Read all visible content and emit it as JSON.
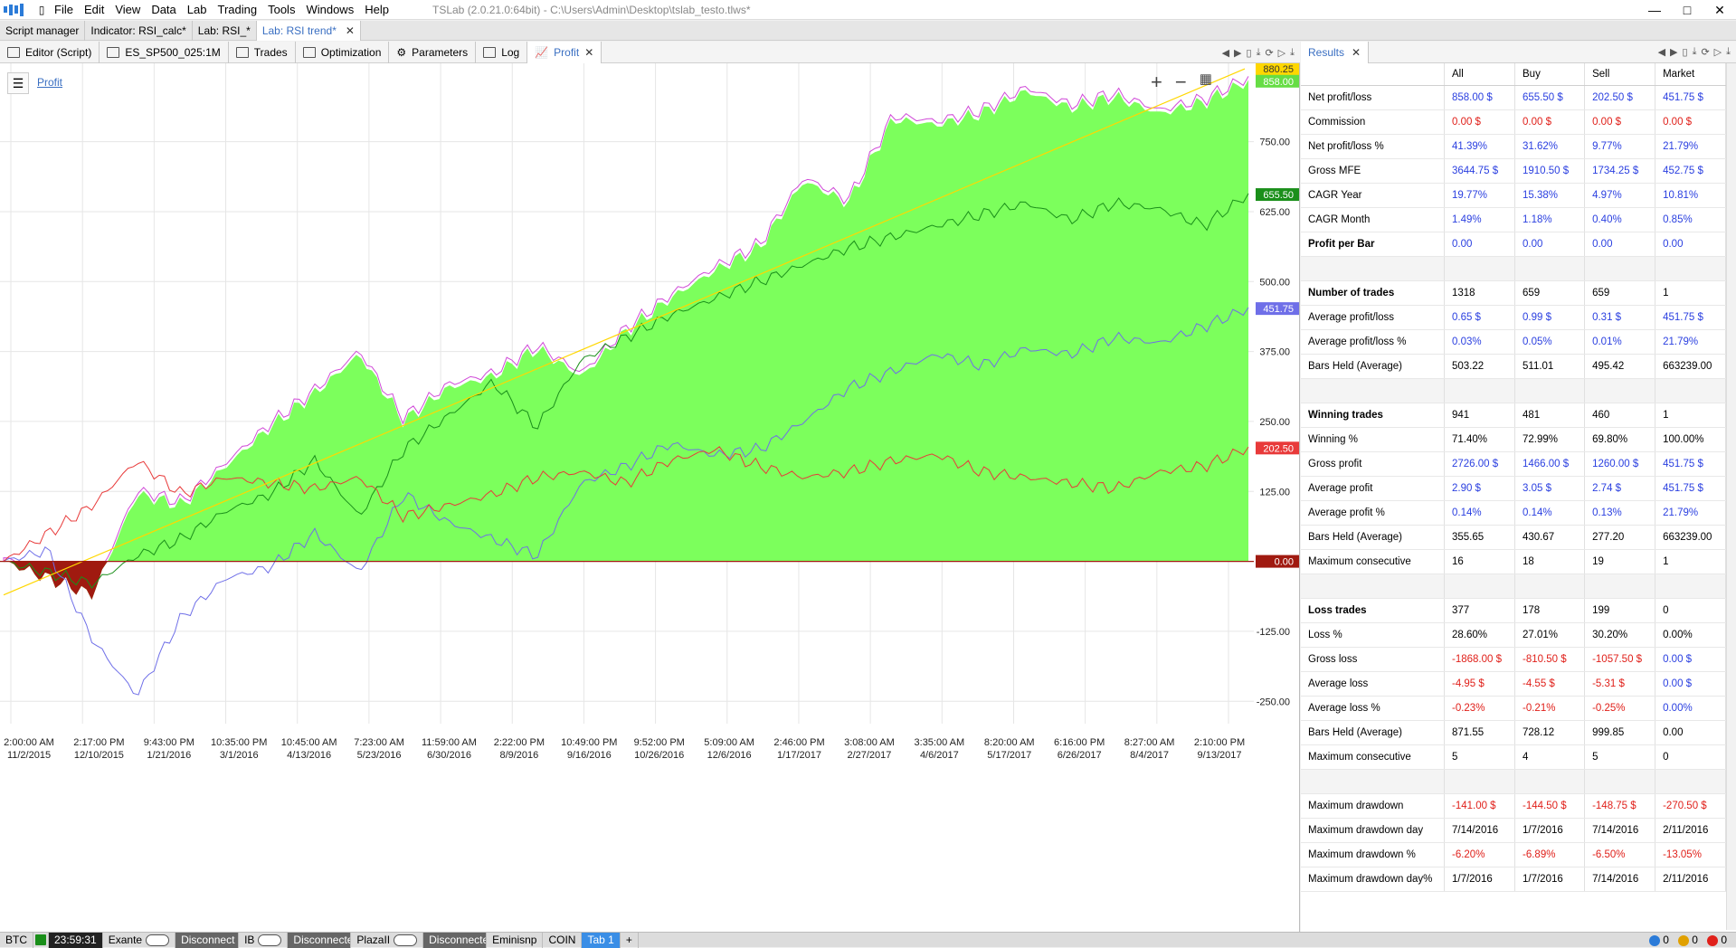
{
  "window": {
    "title": "TSLab (2.0.21.0:64bit) - C:\\Users\\Admin\\Desktop\\tslab_testo.tlws*",
    "menu": [
      "File",
      "Edit",
      "View",
      "Data",
      "Lab",
      "Trading",
      "Tools",
      "Windows",
      "Help"
    ]
  },
  "doc_tabs": [
    {
      "label": "Script manager"
    },
    {
      "label": "Indicator: RSI_calc*"
    },
    {
      "label": "Lab: RSI_*"
    },
    {
      "label": "Lab: RSI trend*",
      "active": true
    }
  ],
  "sub_tabs": [
    {
      "label": "Editor (Script)",
      "icon": "editor-icon"
    },
    {
      "label": "ES_SP500_025:1M",
      "icon": "chart-icon"
    },
    {
      "label": "Trades",
      "icon": "bank-icon"
    },
    {
      "label": "Optimization",
      "icon": "sort-icon"
    },
    {
      "label": "Parameters",
      "icon": "gear-icon"
    },
    {
      "label": "Log",
      "icon": "list-icon"
    },
    {
      "label": "Profit",
      "icon": "profit-icon",
      "active": true
    }
  ],
  "chart_panel": {
    "label": "Profit",
    "price_tags": [
      {
        "value": "880.25",
        "color": "#ffd700"
      },
      {
        "value": "858.00",
        "color": "#66dd44"
      },
      {
        "value": "655.50",
        "color": "#1a8f1a"
      },
      {
        "value": "451.75",
        "color": "#6f6fe8"
      },
      {
        "value": "202.50",
        "color": "#e83a3a"
      },
      {
        "value": "0.00",
        "color": "#a01a10"
      }
    ]
  },
  "chart_data": {
    "type": "area",
    "y_ticks": [
      "750.00",
      "625.00",
      "500.00",
      "375.00",
      "250.00",
      "125.00",
      "-125.00",
      "-250.00"
    ],
    "x_ticks": [
      {
        "time": "2:00:00 AM",
        "date": "11/2/2015"
      },
      {
        "time": "2:17:00 PM",
        "date": "12/10/2015"
      },
      {
        "time": "9:43:00 PM",
        "date": "1/21/2016"
      },
      {
        "time": "10:35:00 PM",
        "date": "3/1/2016"
      },
      {
        "time": "10:45:00 AM",
        "date": "4/13/2016"
      },
      {
        "time": "7:23:00 AM",
        "date": "5/23/2016"
      },
      {
        "time": "11:59:00 AM",
        "date": "6/30/2016"
      },
      {
        "time": "2:22:00 PM",
        "date": "8/9/2016"
      },
      {
        "time": "10:49:00 PM",
        "date": "9/16/2016"
      },
      {
        "time": "9:52:00 PM",
        "date": "10/26/2016"
      },
      {
        "time": "5:09:00 AM",
        "date": "12/6/2016"
      },
      {
        "time": "2:46:00 PM",
        "date": "1/17/2017"
      },
      {
        "time": "3:08:00 AM",
        "date": "2/27/2017"
      },
      {
        "time": "3:35:00 AM",
        "date": "4/6/2017"
      },
      {
        "time": "8:20:00 AM",
        "date": "5/17/2017"
      },
      {
        "time": "6:16:00 PM",
        "date": "6/26/2017"
      },
      {
        "time": "8:27:00 AM",
        "date": "8/4/2017"
      },
      {
        "time": "2:10:00 PM",
        "date": "9/13/2017"
      }
    ],
    "ylim": [
      -290,
      890
    ],
    "series": [
      {
        "color": "#7cff5c",
        "style": "area",
        "values": [
          0,
          -30,
          -60,
          120,
          100,
          170,
          240,
          300,
          370,
          250,
          310,
          330,
          380,
          330,
          410,
          470,
          520,
          560,
          680,
          640,
          790,
          780,
          800,
          840,
          810,
          830,
          800,
          820,
          858
        ]
      },
      {
        "color": "#1a8f1a",
        "values": [
          0,
          -20,
          -40,
          10,
          40,
          90,
          120,
          180,
          80,
          200,
          260,
          320,
          240,
          360,
          400,
          440,
          470,
          500,
          530,
          560,
          580,
          600,
          620,
          640,
          610,
          640,
          630,
          600,
          655.5
        ]
      },
      {
        "color": "#6f6fe8",
        "values": [
          0,
          20,
          -140,
          -240,
          -100,
          -30,
          -10,
          50,
          -20,
          120,
          70,
          40,
          10,
          140,
          170,
          210,
          190,
          200,
          250,
          310,
          340,
          370,
          350,
          380,
          370,
          400,
          390,
          420,
          451.75
        ]
      },
      {
        "color": "#e83a3a",
        "values": [
          0,
          50,
          100,
          180,
          120,
          150,
          140,
          130,
          150,
          80,
          100,
          120,
          150,
          160,
          140,
          180,
          200,
          170,
          150,
          160,
          180,
          190,
          160,
          150,
          140,
          130,
          160,
          170,
          202.5
        ]
      },
      {
        "color": "#ffd700",
        "values": [
          -60,
          880.25
        ]
      }
    ]
  },
  "results": {
    "tab_label": "Results",
    "columns": [
      "",
      "All",
      "Buy",
      "Sell",
      "Market"
    ],
    "rows": [
      {
        "label": "Net profit/loss",
        "bold": false,
        "vals": [
          "858.00 $",
          "655.50 $",
          "202.50 $",
          "451.75 $"
        ],
        "colors": [
          "blue",
          "blue",
          "blue",
          "blue"
        ]
      },
      {
        "label": "Commission",
        "vals": [
          "0.00 $",
          "0.00 $",
          "0.00 $",
          "0.00 $"
        ],
        "colors": [
          "red",
          "red",
          "red",
          "red"
        ]
      },
      {
        "label": "Net profit/loss %",
        "vals": [
          "41.39%",
          "31.62%",
          "9.77%",
          "21.79%"
        ],
        "colors": [
          "blue",
          "blue",
          "blue",
          "blue"
        ]
      },
      {
        "label": "Gross MFE",
        "vals": [
          "3644.75 $",
          "1910.50 $",
          "1734.25 $",
          "452.75 $"
        ],
        "colors": [
          "blue",
          "blue",
          "blue",
          "blue"
        ]
      },
      {
        "label": "CAGR Year",
        "vals": [
          "19.77%",
          "15.38%",
          "4.97%",
          "10.81%"
        ],
        "colors": [
          "blue",
          "blue",
          "blue",
          "blue"
        ]
      },
      {
        "label": "CAGR Month",
        "vals": [
          "1.49%",
          "1.18%",
          "0.40%",
          "0.85%"
        ],
        "colors": [
          "blue",
          "blue",
          "blue",
          "blue"
        ]
      },
      {
        "label": "Profit per Bar",
        "bold": true,
        "vals": [
          "0.00",
          "0.00",
          "0.00",
          "0.00"
        ],
        "colors": [
          "blue",
          "blue",
          "blue",
          "blue"
        ]
      },
      {
        "spacer": true
      },
      {
        "label": "Number of trades",
        "bold": true,
        "vals": [
          "1318",
          "659",
          "659",
          "1"
        ],
        "colors": [
          "",
          "",
          "",
          ""
        ]
      },
      {
        "label": "Average profit/loss",
        "vals": [
          "0.65 $",
          "0.99 $",
          "0.31 $",
          "451.75 $"
        ],
        "colors": [
          "blue",
          "blue",
          "blue",
          "blue"
        ]
      },
      {
        "label": "Average profit/loss %",
        "vals": [
          "0.03%",
          "0.05%",
          "0.01%",
          "21.79%"
        ],
        "colors": [
          "blue",
          "blue",
          "blue",
          "blue"
        ]
      },
      {
        "label": "Bars Held (Average)",
        "vals": [
          "503.22",
          "511.01",
          "495.42",
          "663239.00"
        ],
        "colors": [
          "",
          "",
          "",
          ""
        ]
      },
      {
        "spacer": true
      },
      {
        "label": "Winning trades",
        "bold": true,
        "vals": [
          "941",
          "481",
          "460",
          "1"
        ],
        "colors": [
          "",
          "",
          "",
          ""
        ]
      },
      {
        "label": "Winning %",
        "vals": [
          "71.40%",
          "72.99%",
          "69.80%",
          "100.00%"
        ],
        "colors": [
          "",
          "",
          "",
          ""
        ]
      },
      {
        "label": "Gross profit",
        "vals": [
          "2726.00 $",
          "1466.00 $",
          "1260.00 $",
          "451.75 $"
        ],
        "colors": [
          "blue",
          "blue",
          "blue",
          "blue"
        ]
      },
      {
        "label": "Average profit",
        "vals": [
          "2.90 $",
          "3.05 $",
          "2.74 $",
          "451.75 $"
        ],
        "colors": [
          "blue",
          "blue",
          "blue",
          "blue"
        ]
      },
      {
        "label": "Average profit %",
        "vals": [
          "0.14%",
          "0.14%",
          "0.13%",
          "21.79%"
        ],
        "colors": [
          "blue",
          "blue",
          "blue",
          "blue"
        ]
      },
      {
        "label": "Bars Held (Average)",
        "vals": [
          "355.65",
          "430.67",
          "277.20",
          "663239.00"
        ],
        "colors": [
          "",
          "",
          "",
          ""
        ]
      },
      {
        "label": "Maximum consecutive",
        "vals": [
          "16",
          "18",
          "19",
          "1"
        ],
        "colors": [
          "",
          "",
          "",
          ""
        ]
      },
      {
        "spacer": true
      },
      {
        "label": "Loss trades",
        "bold": true,
        "vals": [
          "377",
          "178",
          "199",
          "0"
        ],
        "colors": [
          "",
          "",
          "",
          ""
        ]
      },
      {
        "label": "Loss %",
        "vals": [
          "28.60%",
          "27.01%",
          "30.20%",
          "0.00%"
        ],
        "colors": [
          "",
          "",
          "",
          ""
        ]
      },
      {
        "label": "Gross loss",
        "vals": [
          "-1868.00 $",
          "-810.50 $",
          "-1057.50 $",
          "0.00 $"
        ],
        "colors": [
          "red",
          "red",
          "red",
          "blue"
        ]
      },
      {
        "label": "Average loss",
        "vals": [
          "-4.95 $",
          "-4.55 $",
          "-5.31 $",
          "0.00 $"
        ],
        "colors": [
          "red",
          "red",
          "red",
          "blue"
        ]
      },
      {
        "label": "Average loss %",
        "vals": [
          "-0.23%",
          "-0.21%",
          "-0.25%",
          "0.00%"
        ],
        "colors": [
          "red",
          "red",
          "red",
          "blue"
        ]
      },
      {
        "label": "Bars Held (Average)",
        "vals": [
          "871.55",
          "728.12",
          "999.85",
          "0.00"
        ],
        "colors": [
          "",
          "",
          "",
          ""
        ]
      },
      {
        "label": "Maximum consecutive",
        "vals": [
          "5",
          "4",
          "5",
          "0"
        ],
        "colors": [
          "",
          "",
          "",
          ""
        ]
      },
      {
        "spacer": true
      },
      {
        "label": "Maximum drawdown",
        "vals": [
          "-141.00 $",
          "-144.50 $",
          "-148.75 $",
          "-270.50 $"
        ],
        "colors": [
          "red",
          "red",
          "red",
          "red"
        ]
      },
      {
        "label": "Maximum drawdown day",
        "vals": [
          "7/14/2016",
          "1/7/2016",
          "7/14/2016",
          "2/11/2016"
        ],
        "colors": [
          "",
          "",
          "",
          ""
        ]
      },
      {
        "label": "Maximum drawdown %",
        "vals": [
          "-6.20%",
          "-6.89%",
          "-6.50%",
          "-13.05%"
        ],
        "colors": [
          "red",
          "red",
          "red",
          "red"
        ]
      },
      {
        "label": "Maximum drawdown day%",
        "vals": [
          "1/7/2016",
          "1/7/2016",
          "7/14/2016",
          "2/11/2016"
        ],
        "colors": [
          "",
          "",
          "",
          ""
        ]
      }
    ]
  },
  "statusbar": {
    "btc": "BTC",
    "time": "23:59:31",
    "exante": "Exante",
    "disc1": "Disconnect",
    "ib": "IB",
    "disc2": "Disconnecte",
    "plaza": "PlazaII",
    "disc3": "Disconnecte",
    "eminisnp": "Eminisnp",
    "coin": "COIN",
    "tab1": "Tab 1",
    "plus": "+",
    "counts": [
      "0",
      "0",
      "0"
    ]
  }
}
